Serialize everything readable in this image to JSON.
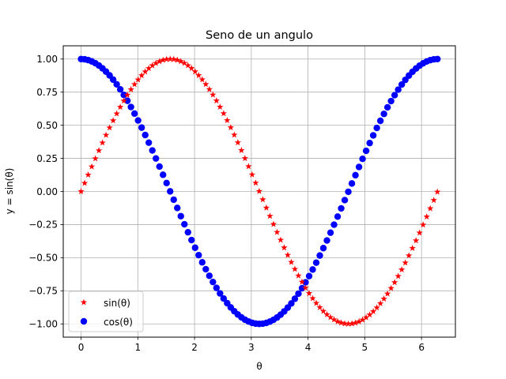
{
  "chart_data": {
    "type": "scatter",
    "title": "Seno de un angulo",
    "xlabel": "θ",
    "ylabel": "y = sin(θ)",
    "xlim": [
      -0.3142,
      6.5973
    ],
    "ylim": [
      -1.1,
      1.1
    ],
    "xticks": [
      0,
      1,
      2,
      3,
      4,
      5,
      6
    ],
    "yticks": [
      1.0,
      0.75,
      0.5,
      0.25,
      0.0,
      -0.25,
      -0.5,
      -0.75,
      -1.0
    ],
    "ytick_labels": [
      "1.00",
      "0.75",
      "0.50",
      "0.25",
      "0.00",
      "−0.25",
      "−0.50",
      "−0.75",
      "−1.00"
    ],
    "grid": true,
    "legend_position": "lower-left",
    "x_range": {
      "start": 0,
      "stop": 6.2832,
      "step": 0.0628
    },
    "series": [
      {
        "name": "sin(θ)",
        "function": "sin",
        "marker": "star",
        "color": "#ff0000"
      },
      {
        "name": "cos(θ)",
        "function": "cos",
        "marker": "circle",
        "color": "#0000ff"
      }
    ]
  }
}
